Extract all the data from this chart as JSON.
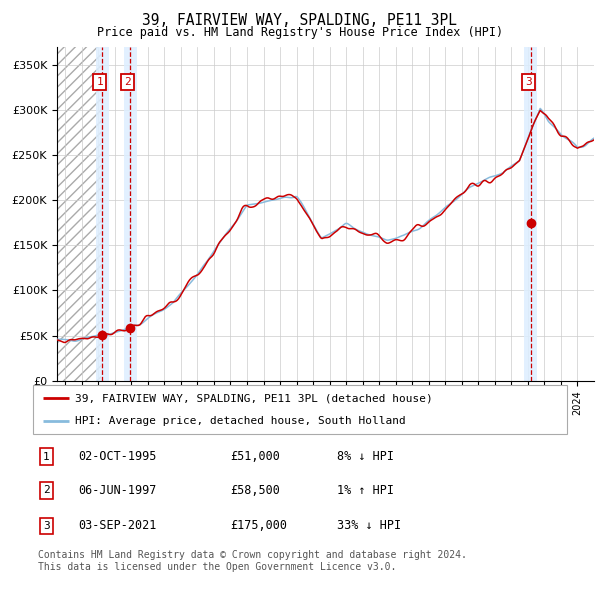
{
  "title": "39, FAIRVIEW WAY, SPALDING, PE11 3PL",
  "subtitle": "Price paid vs. HM Land Registry's House Price Index (HPI)",
  "ylim": [
    0,
    370000
  ],
  "yticks": [
    0,
    50000,
    100000,
    150000,
    200000,
    250000,
    300000,
    350000
  ],
  "sales": [
    {
      "year": 1995.75,
      "price": 51000,
      "label": "1"
    },
    {
      "year": 1997.44,
      "price": 58500,
      "label": "2"
    },
    {
      "year": 2021.67,
      "price": 175000,
      "label": "3"
    }
  ],
  "legend_line1": "39, FAIRVIEW WAY, SPALDING, PE11 3PL (detached house)",
  "legend_line2": "HPI: Average price, detached house, South Holland",
  "table_rows": [
    {
      "num": "1",
      "date": "02-OCT-1995",
      "price": "£51,000",
      "hpi": "8% ↓ HPI"
    },
    {
      "num": "2",
      "date": "06-JUN-1997",
      "price": "£58,500",
      "hpi": "1% ↑ HPI"
    },
    {
      "num": "3",
      "date": "03-SEP-2021",
      "price": "£175,000",
      "hpi": "33% ↓ HPI"
    }
  ],
  "footer": "Contains HM Land Registry data © Crown copyright and database right 2024.\nThis data is licensed under the Open Government Licence v3.0.",
  "red": "#cc0000",
  "blue": "#88bbdd",
  "grid_color": "#cccccc",
  "shade_color": "#ddeeff",
  "xmin": 1993.0,
  "xmax": 2025.5
}
